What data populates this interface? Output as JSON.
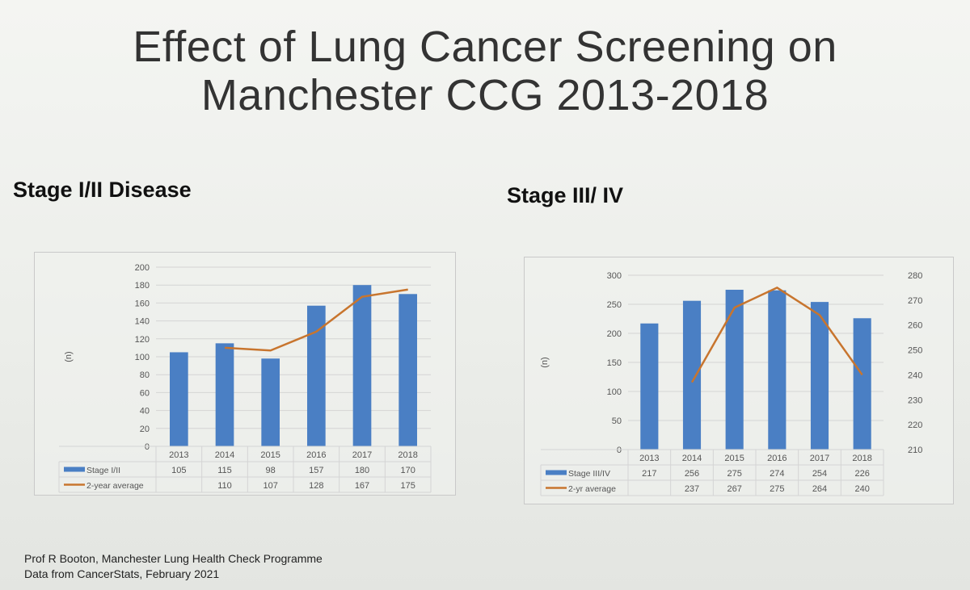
{
  "slide": {
    "title_line1": "Effect of Lung Cancer Screening on",
    "title_line2": "Manchester CCG 2013-2018",
    "left_heading": "Stage I/II Disease",
    "right_heading": "Stage III/ IV",
    "footer_line1": "Prof R Booton, Manchester Lung Health Check Programme",
    "footer_line2": "Data from CancerStats, February 2021"
  },
  "colors": {
    "bar": "#4a7fc4",
    "line": "#c8752e",
    "grid": "#d4d4d4"
  },
  "chart_data": [
    {
      "type": "bar",
      "title": "Stage I/II Disease",
      "ylabel": "(n)",
      "categories": [
        "2013",
        "2014",
        "2015",
        "2016",
        "2017",
        "2018"
      ],
      "ylim": [
        0,
        200
      ],
      "yticks": [
        0,
        20,
        40,
        60,
        80,
        100,
        120,
        140,
        160,
        180,
        200
      ],
      "series": [
        {
          "name": "Stage I/II",
          "kind": "bar",
          "axis": "left",
          "values": [
            105,
            115,
            98,
            157,
            180,
            170
          ],
          "labels": [
            "105",
            "115",
            "98",
            "157",
            "180",
            "170"
          ]
        },
        {
          "name": "2-year average",
          "kind": "line",
          "axis": "left",
          "values": [
            null,
            110,
            107,
            128,
            167,
            175
          ],
          "labels": [
            "",
            "110",
            "107",
            "128",
            "167",
            "175"
          ]
        }
      ],
      "legend": "data-table"
    },
    {
      "type": "bar",
      "title": "Stage III/ IV",
      "ylabel": "(n)",
      "categories": [
        "2013",
        "2014",
        "2015",
        "2016",
        "2017",
        "2018"
      ],
      "ylim": [
        0,
        300
      ],
      "yticks": [
        0,
        50,
        100,
        150,
        200,
        250,
        300
      ],
      "y2lim": [
        210,
        280
      ],
      "y2ticks": [
        210,
        220,
        230,
        240,
        250,
        260,
        270,
        280
      ],
      "series": [
        {
          "name": "Stage III/IV",
          "kind": "bar",
          "axis": "left",
          "values": [
            217,
            256,
            275,
            274,
            254,
            226
          ],
          "labels": [
            "217",
            "256",
            "275",
            "274",
            "254",
            "226"
          ]
        },
        {
          "name": "2-yr average",
          "kind": "line",
          "axis": "right",
          "values": [
            null,
            237,
            267,
            275,
            264,
            240
          ],
          "labels": [
            "",
            "237",
            "267",
            "275",
            "264",
            "240"
          ]
        }
      ],
      "legend": "data-table"
    }
  ]
}
